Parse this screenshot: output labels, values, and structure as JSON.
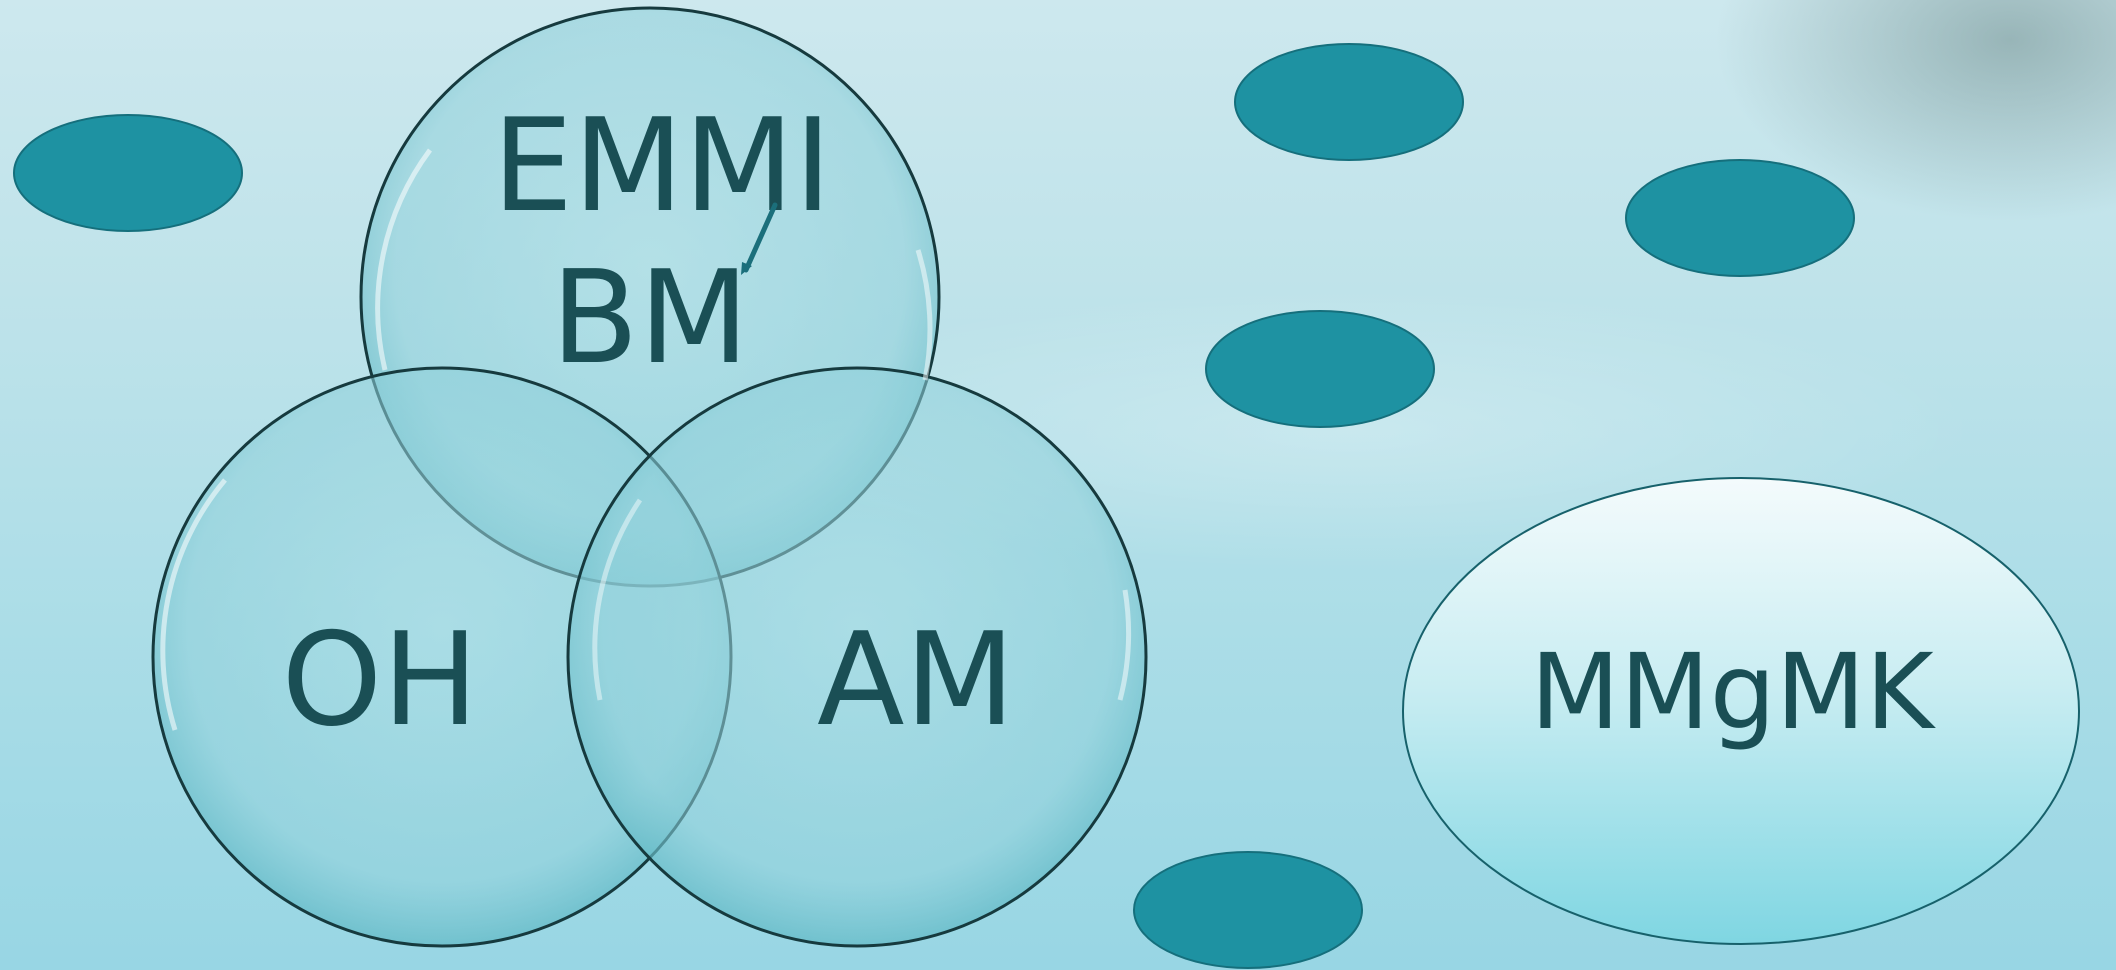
{
  "diagram": {
    "venn": {
      "top_label_line1": "EMMI",
      "top_label_line2": "BM",
      "left_label": "OH",
      "right_label": "AM"
    },
    "callout_label": "MMgMK"
  },
  "colors": {
    "background_top": "#cde8ee",
    "background_bottom": "#98d6e4",
    "circle_fill": "#8fd0da",
    "circle_stroke": "#163a3e",
    "text": "#1a4f55",
    "small_ellipse_fill": "#1e92a2",
    "small_ellipse_stroke": "#156f7c",
    "large_ellipse_top": "#f4fbfc",
    "large_ellipse_bottom": "#7fd6e2"
  }
}
